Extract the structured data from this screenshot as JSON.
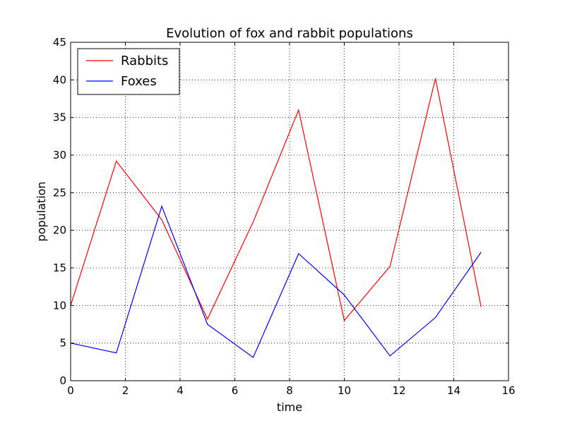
{
  "chart_data": {
    "type": "line",
    "title": "Evolution of fox and rabbit populations",
    "xlabel": "time",
    "ylabel": "population",
    "xlim": [
      0,
      16
    ],
    "ylim": [
      0,
      45
    ],
    "xticks": [
      0,
      2,
      4,
      6,
      8,
      10,
      12,
      14,
      16
    ],
    "yticks": [
      0,
      5,
      10,
      15,
      20,
      25,
      30,
      35,
      40,
      45
    ],
    "grid": true,
    "legend_position": "top-left",
    "x": [
      0,
      1.67,
      3.33,
      5.0,
      6.67,
      8.33,
      10.0,
      11.67,
      13.33,
      15.0
    ],
    "series": [
      {
        "name": "Rabbits",
        "color": "#ff0000",
        "values": [
          10.0,
          29.2,
          21.4,
          8.2,
          21.1,
          36.0,
          8.0,
          15.2,
          40.2,
          9.8
        ]
      },
      {
        "name": "Foxes",
        "color": "#0000ff",
        "values": [
          5.0,
          3.7,
          23.2,
          7.5,
          3.1,
          16.9,
          11.4,
          3.3,
          8.4,
          17.1
        ]
      }
    ]
  }
}
